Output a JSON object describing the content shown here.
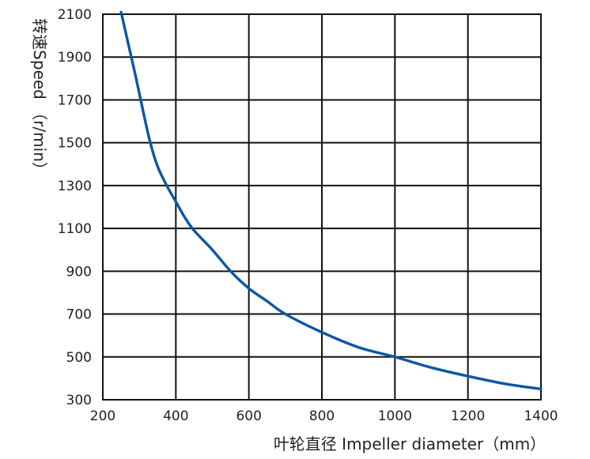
{
  "chart_data": {
    "type": "line",
    "title": "",
    "xlabel": "叶轮直径 Impeller diameter（mm）",
    "ylabel": "转速Speed （r/min）",
    "xlim": [
      200,
      1400
    ],
    "ylim": [
      300,
      2100
    ],
    "x_ticks": [
      "200",
      "400",
      "600",
      "800",
      "1000",
      "1200",
      "1400"
    ],
    "y_ticks": [
      "2100",
      "1900",
      "1700",
      "1500",
      "1300",
      "1100",
      "900",
      "700",
      "500",
      "300"
    ],
    "grid": true,
    "legend": "none",
    "series": [
      {
        "color": "#0a57a5",
        "x": [
          250,
          270,
          290,
          310,
          330,
          350,
          375,
          400,
          425,
          450,
          500,
          550,
          600,
          650,
          700,
          800,
          900,
          1000,
          1100,
          1200,
          1300,
          1400
        ],
        "y": [
          2110,
          1960,
          1810,
          1650,
          1500,
          1390,
          1300,
          1225,
          1150,
          1090,
          1000,
          900,
          820,
          760,
          700,
          615,
          545,
          500,
          450,
          410,
          375,
          350
        ]
      }
    ]
  }
}
